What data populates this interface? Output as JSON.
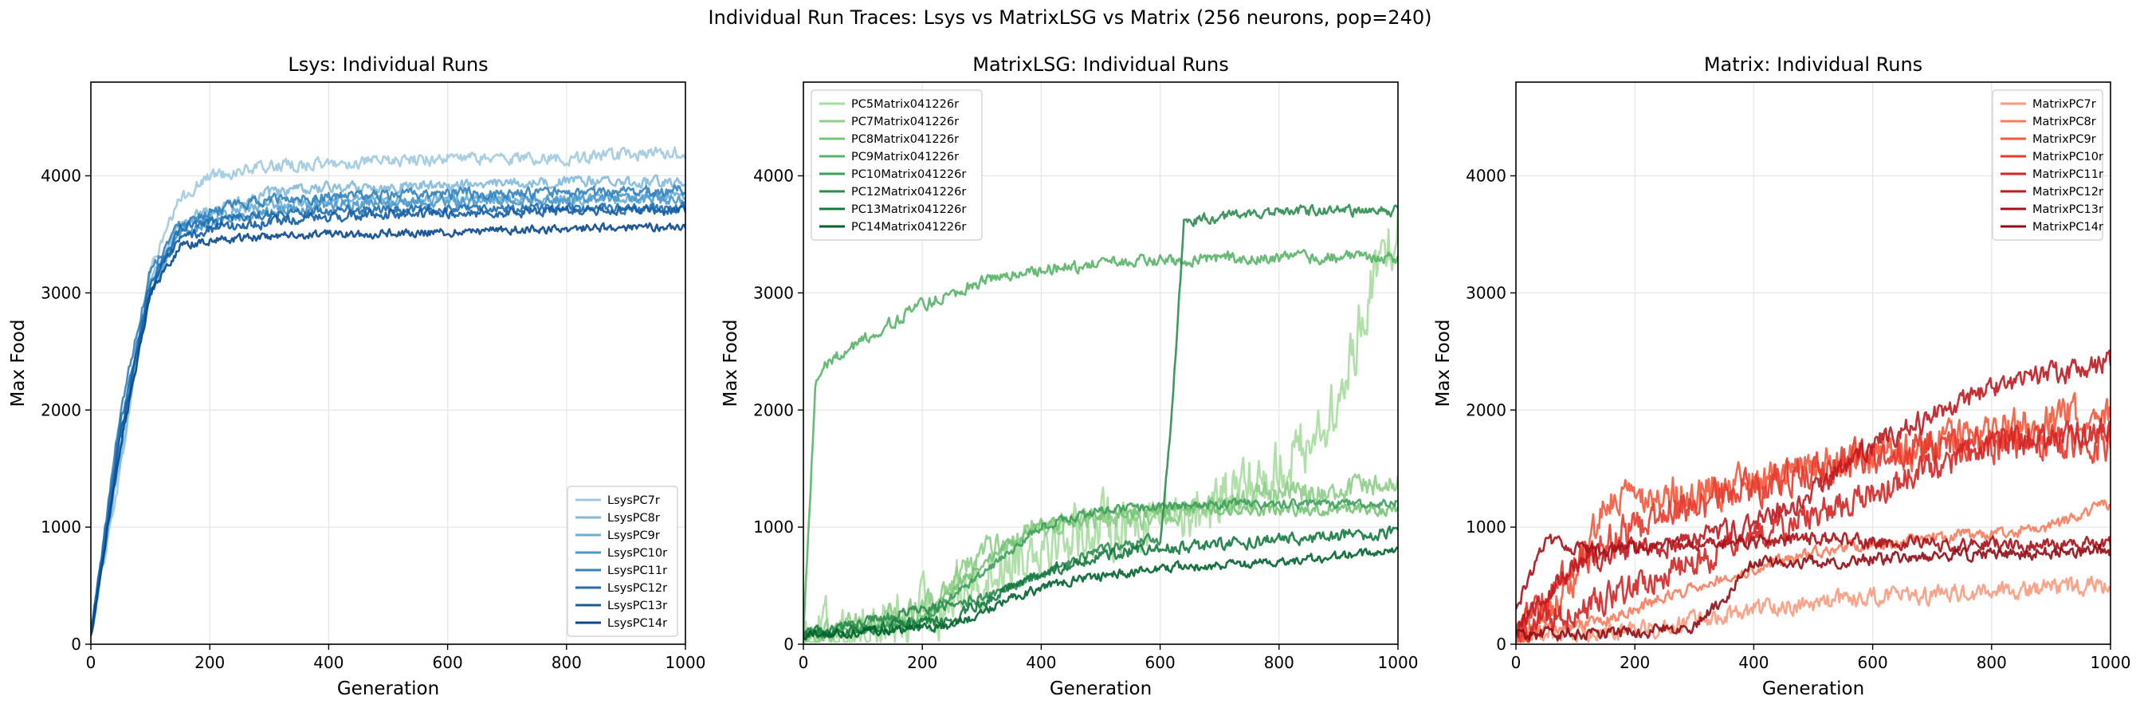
{
  "figure": {
    "suptitle": "Individual Run Traces: Lsys vs MatrixLSG vs Matrix (256 neurons, pop=240)"
  },
  "chart_data": [
    {
      "type": "line",
      "title": "Lsys: Individual Runs",
      "xlabel": "Generation",
      "ylabel": "Max Food",
      "xlim": [
        0,
        1000
      ],
      "ylim": [
        0,
        4800
      ],
      "xticks": [
        0,
        200,
        400,
        600,
        800,
        1000
      ],
      "yticks": [
        0,
        1000,
        2000,
        3000,
        4000
      ],
      "grid": true,
      "legend_position": "lower-right",
      "series": [
        {
          "name": "LsysPC7r",
          "color": "#9ecae1",
          "points": [
            [
              0,
              100
            ],
            [
              50,
              1500
            ],
            [
              100,
              3200
            ],
            [
              150,
              3800
            ],
            [
              200,
              4000
            ],
            [
              300,
              4080
            ],
            [
              400,
              4100
            ],
            [
              600,
              4150
            ],
            [
              800,
              4150
            ],
            [
              1000,
              4200
            ]
          ],
          "noise": 80
        },
        {
          "name": "LsysPC8r",
          "color": "#82badb",
          "points": [
            [
              0,
              90
            ],
            [
              50,
              1600
            ],
            [
              100,
              3100
            ],
            [
              150,
              3600
            ],
            [
              200,
              3700
            ],
            [
              300,
              3850
            ],
            [
              400,
              3900
            ],
            [
              600,
              3920
            ],
            [
              800,
              3950
            ],
            [
              1000,
              3950
            ]
          ],
          "noise": 70
        },
        {
          "name": "LsysPC9r",
          "color": "#6aaed6",
          "points": [
            [
              0,
              80
            ],
            [
              50,
              1700
            ],
            [
              100,
              3000
            ],
            [
              150,
              3550
            ],
            [
              200,
              3650
            ],
            [
              300,
              3750
            ],
            [
              400,
              3780
            ],
            [
              600,
              3800
            ],
            [
              800,
              3800
            ],
            [
              1000,
              3820
            ]
          ],
          "noise": 70
        },
        {
          "name": "LsysPC10r",
          "color": "#4d99ca",
          "points": [
            [
              0,
              80
            ],
            [
              50,
              1800
            ],
            [
              100,
              3050
            ],
            [
              150,
              3500
            ],
            [
              200,
              3600
            ],
            [
              300,
              3700
            ],
            [
              400,
              3750
            ],
            [
              600,
              3780
            ],
            [
              800,
              3800
            ],
            [
              1000,
              3800
            ]
          ],
          "noise": 70
        },
        {
          "name": "LsysPC11r",
          "color": "#3282be",
          "points": [
            [
              0,
              70
            ],
            [
              50,
              2000
            ],
            [
              100,
              3200
            ],
            [
              150,
              3600
            ],
            [
              200,
              3700
            ],
            [
              300,
              3800
            ],
            [
              400,
              3820
            ],
            [
              600,
              3850
            ],
            [
              800,
              3850
            ],
            [
              1000,
              3880
            ]
          ],
          "noise": 70
        },
        {
          "name": "LsysPC12r",
          "color": "#1f6eb3",
          "points": [
            [
              0,
              70
            ],
            [
              50,
              1900
            ],
            [
              100,
              3100
            ],
            [
              150,
              3550
            ],
            [
              200,
              3620
            ],
            [
              300,
              3680
            ],
            [
              400,
              3700
            ],
            [
              600,
              3720
            ],
            [
              800,
              3720
            ],
            [
              1000,
              3720
            ]
          ],
          "noise": 65
        },
        {
          "name": "LsysPC13r",
          "color": "#125ca4",
          "points": [
            [
              0,
              60
            ],
            [
              50,
              1800
            ],
            [
              100,
              3050
            ],
            [
              150,
              3450
            ],
            [
              200,
              3550
            ],
            [
              300,
              3600
            ],
            [
              400,
              3650
            ],
            [
              600,
              3680
            ],
            [
              800,
              3700
            ],
            [
              1000,
              3700
            ]
          ],
          "noise": 65
        },
        {
          "name": "LsysPC14r",
          "color": "#08478d",
          "points": [
            [
              0,
              60
            ],
            [
              50,
              1700
            ],
            [
              100,
              3000
            ],
            [
              150,
              3400
            ],
            [
              200,
              3450
            ],
            [
              300,
              3480
            ],
            [
              400,
              3500
            ],
            [
              600,
              3520
            ],
            [
              800,
              3550
            ],
            [
              1000,
              3570
            ]
          ],
          "noise": 55
        }
      ]
    },
    {
      "type": "line",
      "title": "MatrixLSG: Individual Runs",
      "xlabel": "Generation",
      "ylabel": "Max Food",
      "xlim": [
        0,
        1000
      ],
      "ylim": [
        0,
        4800
      ],
      "xticks": [
        0,
        200,
        400,
        600,
        800,
        1000
      ],
      "yticks": [
        0,
        1000,
        2000,
        3000,
        4000
      ],
      "grid": true,
      "legend_position": "upper-left",
      "series": [
        {
          "name": "PC5Matrix041226r",
          "color": "#a7dba0",
          "points": [
            [
              0,
              80
            ],
            [
              150,
              150
            ],
            [
              250,
              400
            ],
            [
              400,
              900
            ],
            [
              600,
              1100
            ],
            [
              700,
              1200
            ],
            [
              800,
              1500
            ],
            [
              900,
              2000
            ],
            [
              950,
              3000
            ],
            [
              1000,
              3600
            ]
          ],
          "noise": 400
        },
        {
          "name": "PC7Matrix041226r",
          "color": "#8ece88",
          "points": [
            [
              0,
              80
            ],
            [
              200,
              300
            ],
            [
              300,
              800
            ],
            [
              400,
              1000
            ],
            [
              600,
              1100
            ],
            [
              800,
              1300
            ],
            [
              900,
              1300
            ],
            [
              1000,
              1400
            ]
          ],
          "noise": 150
        },
        {
          "name": "PC8Matrix041226r",
          "color": "#74c476",
          "points": [
            [
              0,
              80
            ],
            [
              200,
              200
            ],
            [
              300,
              700
            ],
            [
              400,
              1000
            ],
            [
              500,
              1100
            ],
            [
              600,
              1150
            ],
            [
              800,
              1150
            ],
            [
              1000,
              1150
            ]
          ],
          "noise": 80
        },
        {
          "name": "PC9Matrix041226r",
          "color": "#56b467",
          "points": [
            [
              0,
              80
            ],
            [
              20,
              2200
            ],
            [
              40,
              2400
            ],
            [
              100,
              2600
            ],
            [
              200,
              2900
            ],
            [
              300,
              3100
            ],
            [
              400,
              3200
            ],
            [
              500,
              3250
            ],
            [
              700,
              3300
            ],
            [
              1000,
              3300
            ]
          ],
          "noise": 80
        },
        {
          "name": "PC10Matrix041226r",
          "color": "#3da05a",
          "points": [
            [
              0,
              80
            ],
            [
              200,
              200
            ],
            [
              300,
              600
            ],
            [
              400,
              1000
            ],
            [
              500,
              1150
            ],
            [
              700,
              1200
            ],
            [
              1000,
              1200
            ]
          ],
          "noise": 60
        },
        {
          "name": "PC12Matrix041226r",
          "color": "#2b8c4e",
          "points": [
            [
              0,
              80
            ],
            [
              300,
              400
            ],
            [
              400,
              600
            ],
            [
              500,
              800
            ],
            [
              600,
              900
            ],
            [
              620,
              2000
            ],
            [
              640,
              3600
            ],
            [
              700,
              3650
            ],
            [
              800,
              3700
            ],
            [
              1000,
              3700
            ]
          ],
          "noise": 70
        },
        {
          "name": "PC13Matrix041226r",
          "color": "#147a3f",
          "points": [
            [
              0,
              80
            ],
            [
              250,
              200
            ],
            [
              350,
              500
            ],
            [
              450,
              700
            ],
            [
              550,
              800
            ],
            [
              700,
              850
            ],
            [
              800,
              900
            ],
            [
              1000,
              950
            ]
          ],
          "noise": 80
        },
        {
          "name": "PC14Matrix041226r",
          "color": "#00632d",
          "points": [
            [
              0,
              80
            ],
            [
              250,
              150
            ],
            [
              350,
              400
            ],
            [
              450,
              550
            ],
            [
              600,
              650
            ],
            [
              800,
              700
            ],
            [
              1000,
              800
            ]
          ],
          "noise": 60
        }
      ]
    },
    {
      "type": "line",
      "title": "Matrix: Individual Runs",
      "xlabel": "Generation",
      "ylabel": "Max Food",
      "xlim": [
        0,
        1000
      ],
      "ylim": [
        0,
        4800
      ],
      "xticks": [
        0,
        200,
        400,
        600,
        800,
        1000
      ],
      "yticks": [
        0,
        1000,
        2000,
        3000,
        4000
      ],
      "grid": true,
      "legend_position": "upper-right",
      "series": [
        {
          "name": "MatrixPC7r",
          "color": "#fc9a7d",
          "points": [
            [
              0,
              80
            ],
            [
              200,
              100
            ],
            [
              300,
              200
            ],
            [
              400,
              300
            ],
            [
              600,
              400
            ],
            [
              800,
              450
            ],
            [
              1000,
              500
            ]
          ],
          "noise": 120
        },
        {
          "name": "MatrixPC8r",
          "color": "#fb7b5b",
          "points": [
            [
              0,
              80
            ],
            [
              150,
              200
            ],
            [
              300,
              500
            ],
            [
              500,
              800
            ],
            [
              700,
              900
            ],
            [
              900,
              1000
            ],
            [
              1000,
              1200
            ]
          ],
          "noise": 80
        },
        {
          "name": "MatrixPC9r",
          "color": "#f5593c",
          "points": [
            [
              0,
              100
            ],
            [
              100,
              500
            ],
            [
              150,
              1200
            ],
            [
              300,
              1300
            ],
            [
              500,
              1500
            ],
            [
              700,
              1700
            ],
            [
              900,
              1900
            ],
            [
              1000,
              2000
            ]
          ],
          "noise": 250
        },
        {
          "name": "MatrixPC10r",
          "color": "#e73a2c",
          "points": [
            [
              0,
              100
            ],
            [
              150,
              900
            ],
            [
              300,
              1200
            ],
            [
              500,
              1500
            ],
            [
              700,
              1700
            ],
            [
              900,
              1700
            ],
            [
              1000,
              1700
            ]
          ],
          "noise": 250
        },
        {
          "name": "MatrixPC11r",
          "color": "#d42523",
          "points": [
            [
              0,
              80
            ],
            [
              200,
              500
            ],
            [
              400,
              900
            ],
            [
              600,
              1300
            ],
            [
              800,
              1700
            ],
            [
              1000,
              1800
            ]
          ],
          "noise": 200
        },
        {
          "name": "MatrixPC12r",
          "color": "#be1a20",
          "points": [
            [
              0,
              120
            ],
            [
              100,
              700
            ],
            [
              300,
              900
            ],
            [
              400,
              1000
            ],
            [
              500,
              1300
            ],
            [
              600,
              1700
            ],
            [
              800,
              2200
            ],
            [
              1000,
              2400
            ]
          ],
          "noise": 150
        },
        {
          "name": "MatrixPC13r",
          "color": "#a91016",
          "points": [
            [
              0,
              300
            ],
            [
              50,
              900
            ],
            [
              100,
              800
            ],
            [
              300,
              850
            ],
            [
              500,
              900
            ],
            [
              700,
              850
            ],
            [
              900,
              850
            ],
            [
              1000,
              850
            ]
          ],
          "noise": 90
        },
        {
          "name": "MatrixPC14r",
          "color": "#8f0c14",
          "points": [
            [
              0,
              80
            ],
            [
              200,
              100
            ],
            [
              300,
              150
            ],
            [
              350,
              400
            ],
            [
              400,
              700
            ],
            [
              500,
              700
            ],
            [
              700,
              750
            ],
            [
              1000,
              800
            ]
          ],
          "noise": 80
        }
      ]
    }
  ]
}
